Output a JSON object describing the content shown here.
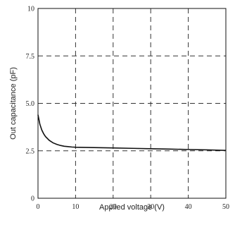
{
  "chart_data": {
    "type": "line",
    "title": "",
    "xlabel": "Applied voltage (V)",
    "ylabel": "Out capacitance (pF)",
    "xlim": [
      0,
      50
    ],
    "ylim": [
      0,
      10
    ],
    "x_ticks": [
      0,
      10,
      20,
      30,
      40,
      50
    ],
    "y_ticks": [
      0,
      2.5,
      5.0,
      7.5,
      10
    ],
    "x_tick_labels": [
      "0",
      "10",
      "20",
      "30",
      "40",
      "50"
    ],
    "y_tick_labels": [
      "0",
      "2.5",
      "5.0",
      "7.5",
      "10"
    ],
    "grid": true,
    "series": [
      {
        "x": [
          0,
          0.25,
          0.5,
          1,
          1.5,
          2,
          3,
          4,
          5,
          6,
          7,
          8,
          9,
          10,
          15,
          20,
          25,
          30,
          35,
          40,
          45,
          50
        ],
        "y": [
          4.4,
          4.15,
          3.9,
          3.6,
          3.4,
          3.25,
          3.05,
          2.92,
          2.84,
          2.78,
          2.74,
          2.72,
          2.7,
          2.69,
          2.67,
          2.65,
          2.63,
          2.61,
          2.59,
          2.57,
          2.55,
          2.52
        ]
      }
    ]
  }
}
